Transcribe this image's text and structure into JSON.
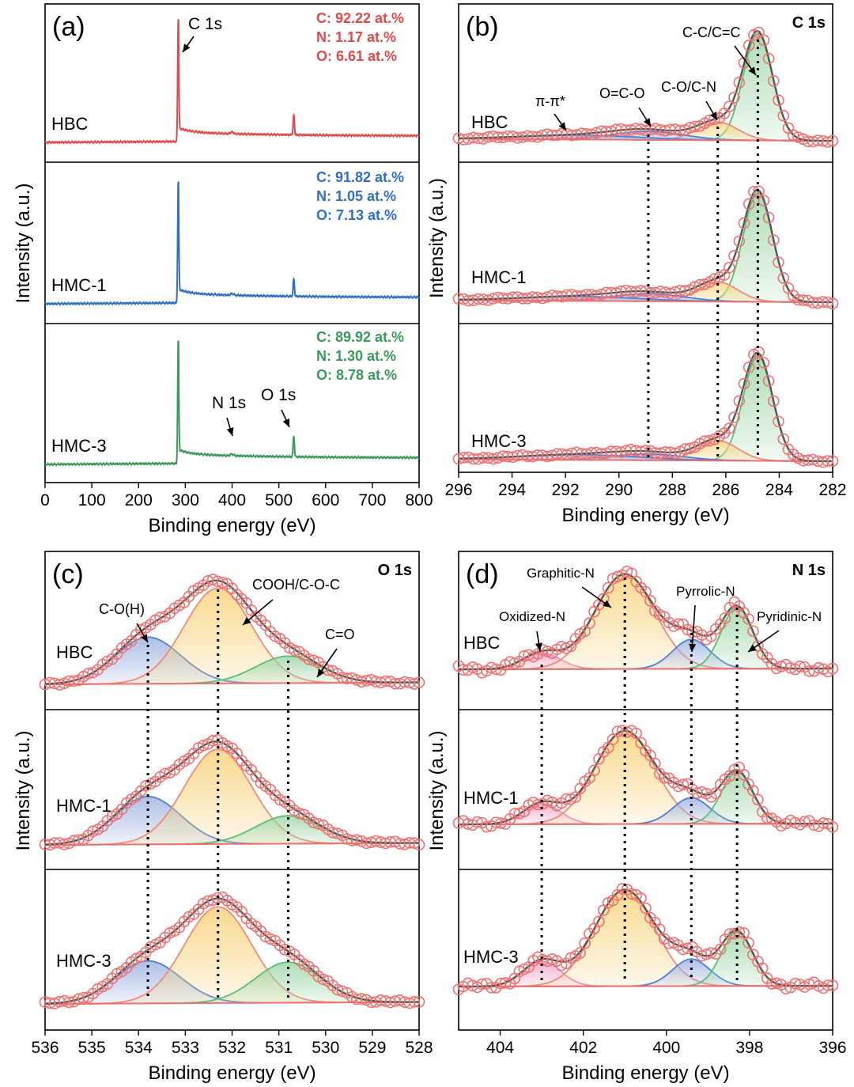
{
  "figure": {
    "panels": [
      {
        "id": "a",
        "label": "(a)",
        "corner_text": "",
        "xlabel": "Binding energy (eV)",
        "ylabel": "Intensity (a.u.)",
        "xlim": [
          0,
          800
        ],
        "reversed": false,
        "ticks": [
          0,
          100,
          200,
          300,
          400,
          500,
          600,
          700,
          800
        ],
        "tick_labels": [
          "0",
          "100",
          "200",
          "300",
          "400",
          "500",
          "600",
          "700",
          "800"
        ],
        "sample_names": [
          "HBC",
          "HMC-1",
          "HMC-3"
        ]
      },
      {
        "id": "b",
        "label": "(b)",
        "corner_text": "C 1s",
        "xlabel": "Binding energy (eV)",
        "ylabel": "Intensity (a.u.)",
        "xlim": [
          296,
          282
        ],
        "reversed": true,
        "ticks": [
          296,
          294,
          292,
          290,
          288,
          286,
          284,
          282
        ],
        "tick_labels": [
          "296",
          "294",
          "292",
          "290",
          "288",
          "286",
          "284",
          "282"
        ],
        "sample_names": [
          "HBC",
          "HMC-1",
          "HMC-3"
        ]
      },
      {
        "id": "c",
        "label": "(c)",
        "corner_text": "O 1s",
        "xlabel": "Binding energy (eV)",
        "ylabel": "Intensity (a.u.)",
        "xlim": [
          536,
          528
        ],
        "reversed": true,
        "ticks": [
          536,
          535,
          534,
          533,
          532,
          531,
          530,
          529,
          528
        ],
        "tick_labels": [
          "536",
          "535",
          "534",
          "533",
          "532",
          "531",
          "530",
          "529",
          "528"
        ],
        "sample_names": [
          "HBC",
          "HMC-1",
          "HMC-3"
        ]
      },
      {
        "id": "d",
        "label": "(d)",
        "corner_text": "N 1s",
        "xlabel": "Binding energy (eV)",
        "ylabel": "Intensity (a.u.)",
        "xlim": [
          405,
          396
        ],
        "reversed": true,
        "ticks": [
          404,
          402,
          400,
          398,
          396
        ],
        "tick_labels": [
          "404",
          "402",
          "400",
          "398",
          "396"
        ],
        "sample_names": [
          "HBC",
          "HMC-1",
          "HMC-3"
        ]
      }
    ],
    "survey_annotations": {
      "c1s_peak": "C 1s",
      "n1s_peak": "N 1s",
      "o1s_peak": "O 1s",
      "compositions": [
        {
          "sample": "HBC",
          "color": "#e04a4a",
          "lines": [
            "C: 92.22 at.%",
            "N:   1.17 at.%",
            "O:   6.61 at.%"
          ]
        },
        {
          "sample": "HMC-1",
          "color": "#2f6fc4",
          "lines": [
            "C: 91.82 at.%",
            "N:   1.05 at.%",
            "O:   7.13 at.%"
          ]
        },
        {
          "sample": "HMC-3",
          "color": "#3a9a5a",
          "lines": [
            "C: 89.92 at.%",
            "N:   1.30 at.%",
            "O:   8.78 at.%"
          ]
        }
      ]
    },
    "component_labels": {
      "b": [
        "π-π*",
        "O=C-O",
        "C-O/C-N",
        "C-C/C=C"
      ],
      "c": [
        "C-O(H)",
        "COOH/C-O-C",
        "C=O"
      ],
      "d": [
        "Oxidized-N",
        "Graphitic-N",
        "Pyrrolic-N",
        "Pyridinic-N"
      ]
    }
  },
  "colors": {
    "hbc_line": "#e04a4a",
    "hmc1_line": "#2f6fc4",
    "hmc3_line": "#3a9a5a",
    "marker": "#f07070",
    "envelope": "#555555",
    "baseline": "#f07070",
    "fill_blue": "#9fb3e0",
    "fill_yellow": "#f7d27a",
    "fill_green": "#9fd6a8",
    "fill_pink": "#f2a3c8"
  },
  "chart_data": [
    {
      "type": "line",
      "panel": "a",
      "title": "",
      "xlabel": "Binding energy (eV)",
      "ylabel": "Intensity (a.u.)",
      "xlim": [
        0,
        800
      ],
      "series": [
        {
          "name": "HBC",
          "x": [
            0,
            100,
            200,
            280,
            284.8,
            290,
            300,
            400,
            500,
            532,
            600,
            700,
            800
          ],
          "y": [
            0.02,
            0.03,
            0.04,
            0.05,
            1.0,
            0.15,
            0.1,
            0.08,
            0.09,
            0.19,
            0.08,
            0.07,
            0.06
          ]
        },
        {
          "name": "HMC-1",
          "x": [
            0,
            100,
            200,
            280,
            284.8,
            290,
            300,
            400,
            500,
            532,
            600,
            700,
            800
          ],
          "y": [
            0.02,
            0.03,
            0.04,
            0.05,
            1.0,
            0.14,
            0.1,
            0.08,
            0.09,
            0.17,
            0.08,
            0.07,
            0.06
          ]
        },
        {
          "name": "HMC-3",
          "x": [
            0,
            100,
            200,
            280,
            284.8,
            290,
            300,
            400,
            500,
            532,
            600,
            700,
            800
          ],
          "y": [
            0.02,
            0.03,
            0.04,
            0.05,
            1.0,
            0.16,
            0.11,
            0.09,
            0.1,
            0.21,
            0.09,
            0.08,
            0.07
          ]
        }
      ]
    },
    {
      "type": "line",
      "panel": "b",
      "xlabel": "Binding energy (eV)",
      "ylabel": "Intensity (a.u.)",
      "xlim": [
        296,
        282
      ],
      "components": [
        {
          "name": "C-C/C=C",
          "center": 284.8,
          "fill": "green"
        },
        {
          "name": "C-O/C-N",
          "center": 286.3,
          "fill": "yellow"
        },
        {
          "name": "O=C-O",
          "center": 288.9,
          "fill": "blue"
        },
        {
          "name": "π-π*",
          "center": 291.5,
          "fill": "blue"
        }
      ],
      "series": [
        {
          "name": "HBC",
          "amplitudes": [
            1.0,
            0.17,
            0.08,
            0.04
          ]
        },
        {
          "name": "HMC-1",
          "amplitudes": [
            1.0,
            0.18,
            0.07,
            0.04
          ]
        },
        {
          "name": "HMC-3",
          "amplitudes": [
            1.0,
            0.19,
            0.06,
            0.05
          ]
        }
      ]
    },
    {
      "type": "line",
      "panel": "c",
      "xlabel": "Binding energy (eV)",
      "ylabel": "Intensity (a.u.)",
      "xlim": [
        536,
        528
      ],
      "components": [
        {
          "name": "C-O(H)",
          "center": 533.8,
          "fill": "blue"
        },
        {
          "name": "COOH/C-O-C",
          "center": 532.3,
          "fill": "yellow"
        },
        {
          "name": "C=O",
          "center": 530.8,
          "fill": "green"
        }
      ],
      "series": [
        {
          "name": "HBC",
          "amplitudes": [
            0.45,
            0.92,
            0.26
          ]
        },
        {
          "name": "HMC-1",
          "amplitudes": [
            0.48,
            0.95,
            0.28
          ]
        },
        {
          "name": "HMC-3",
          "amplitudes": [
            0.42,
            0.95,
            0.4
          ]
        }
      ]
    },
    {
      "type": "line",
      "panel": "d",
      "xlabel": "Binding energy (eV)",
      "ylabel": "Intensity (a.u.)",
      "xlim": [
        405,
        396
      ],
      "components": [
        {
          "name": "Oxidized-N",
          "center": 403.0,
          "fill": "pink"
        },
        {
          "name": "Graphitic-N",
          "center": 401.0,
          "fill": "yellow"
        },
        {
          "name": "Pyrrolic-N",
          "center": 399.4,
          "fill": "blue"
        },
        {
          "name": "Pyridinic-N",
          "center": 398.3,
          "fill": "green"
        }
      ],
      "series": [
        {
          "name": "HBC",
          "amplitudes": [
            0.17,
            1.0,
            0.31,
            0.65
          ]
        },
        {
          "name": "HMC-1",
          "amplitudes": [
            0.22,
            1.0,
            0.28,
            0.56
          ]
        },
        {
          "name": "HMC-3",
          "amplitudes": [
            0.26,
            1.0,
            0.28,
            0.56
          ]
        }
      ]
    }
  ]
}
